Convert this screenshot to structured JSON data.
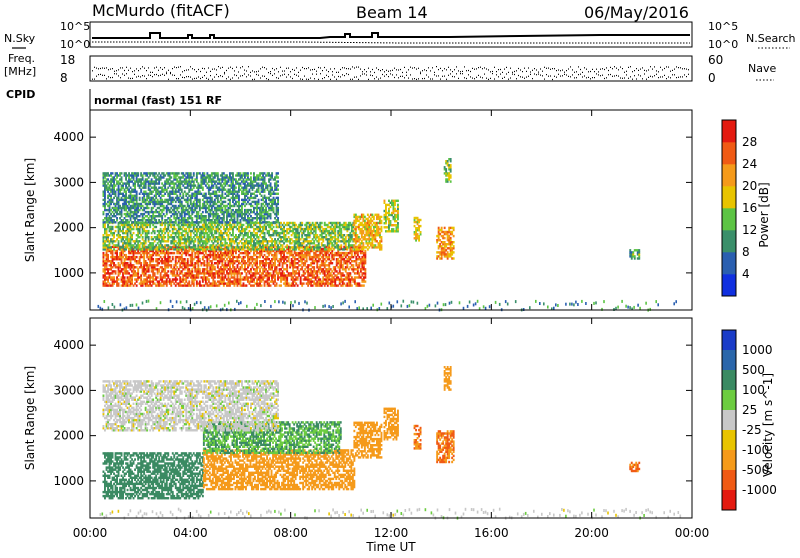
{
  "header": {
    "station": "McMurdo (fitACF)",
    "beam": "Beam 14",
    "date": "06/May/2016"
  },
  "top_panel": {
    "left_label": "N.Sky",
    "right_label": "N.Search",
    "scale_hi": "10^5",
    "scale_lo": "10^0",
    "freq_label_1": "Freq.",
    "freq_label_2": "[MHz]",
    "freq_hi": "18",
    "freq_lo": "8",
    "nave_label": "Nave",
    "nave_hi": "60",
    "nave_lo": "0",
    "cpid_label": "CPID",
    "cpid_value": "normal (fast) 151 RF"
  },
  "chart_data": [
    {
      "type": "heatmap",
      "title": "",
      "xlabel": "Time UT",
      "ylabel": "Slant Range [km]",
      "xlim": [
        0,
        24
      ],
      "ylim": [
        180,
        4600
      ],
      "x_ticks": [
        "00:00",
        "04:00",
        "08:00",
        "12:00",
        "16:00",
        "20:00",
        "00:00"
      ],
      "y_ticks": [
        1000,
        2000,
        3000,
        4000
      ],
      "colorbar": {
        "label": "Power [dB]",
        "ticks": [
          4,
          8,
          12,
          16,
          20,
          24,
          28
        ],
        "range": [
          0,
          32
        ],
        "colors": [
          "#1030e0",
          "#2a5fb0",
          "#3a8f6a",
          "#5cc444",
          "#e8c400",
          "#f59a1a",
          "#f05a14",
          "#e41a10"
        ]
      },
      "regions": [
        {
          "t0": 0.5,
          "t1": 11.0,
          "r0": 700,
          "r1": 1600,
          "value": 26,
          "desc_ref": "main-echo"
        },
        {
          "t0": 0.5,
          "t1": 10.5,
          "r0": 1500,
          "r1": 2100,
          "value": 14
        },
        {
          "t0": 0.5,
          "t1": 7.5,
          "r0": 2100,
          "r1": 3200,
          "value": 10
        },
        {
          "t0": 10.5,
          "t1": 11.6,
          "r0": 1500,
          "r1": 2300,
          "value": 20
        },
        {
          "t0": 11.7,
          "t1": 12.3,
          "r0": 1900,
          "r1": 2600,
          "value": 16
        },
        {
          "t0": 12.9,
          "t1": 13.2,
          "r0": 1700,
          "r1": 2200,
          "value": 18
        },
        {
          "t0": 13.8,
          "t1": 14.5,
          "r0": 1300,
          "r1": 2000,
          "value": 22
        },
        {
          "t0": 14.1,
          "t1": 14.4,
          "r0": 3000,
          "r1": 3500,
          "value": 14
        },
        {
          "t0": 21.5,
          "t1": 21.9,
          "r0": 1300,
          "r1": 1500,
          "value": 12
        }
      ]
    },
    {
      "type": "heatmap",
      "title": "",
      "xlabel": "Time UT",
      "ylabel": "Slant Range [km]",
      "xlim": [
        0,
        24
      ],
      "ylim": [
        180,
        4600
      ],
      "x_ticks": [
        "00:00",
        "04:00",
        "08:00",
        "12:00",
        "16:00",
        "20:00",
        "00:00"
      ],
      "y_ticks": [
        1000,
        2000,
        3000,
        4000
      ],
      "colorbar": {
        "label": "Velocity [m s^-1]",
        "ticks": [
          1000,
          500,
          100,
          25,
          -25,
          -100,
          -500,
          -1000
        ],
        "colors": [
          "#1a3cc8",
          "#2a66aa",
          "#3a8a62",
          "#6ccc40",
          "#c8c8c8",
          "#e8c400",
          "#f59a1a",
          "#f05a14",
          "#e41a10"
        ]
      },
      "regions": [
        {
          "t0": 0.5,
          "t1": 4.5,
          "r0": 600,
          "r1": 1600,
          "value": 300
        },
        {
          "t0": 4.5,
          "t1": 10.5,
          "r0": 800,
          "r1": 1700,
          "value": -300
        },
        {
          "t0": 4.5,
          "t1": 10.0,
          "r0": 1600,
          "r1": 2300,
          "value": 100
        },
        {
          "t0": 0.5,
          "t1": 7.5,
          "r0": 2100,
          "r1": 3200,
          "value": 0
        },
        {
          "t0": 10.5,
          "t1": 11.6,
          "r0": 1500,
          "r1": 2300,
          "value": -300
        },
        {
          "t0": 11.7,
          "t1": 12.3,
          "r0": 1900,
          "r1": 2600,
          "value": -300
        },
        {
          "t0": 12.9,
          "t1": 13.2,
          "r0": 1700,
          "r1": 2200,
          "value": -500
        },
        {
          "t0": 13.8,
          "t1": 14.5,
          "r0": 1400,
          "r1": 2100,
          "value": -500
        },
        {
          "t0": 14.1,
          "t1": 14.4,
          "r0": 3000,
          "r1": 3500,
          "value": -300
        },
        {
          "t0": 21.5,
          "t1": 21.9,
          "r0": 1200,
          "r1": 1400,
          "value": -500
        }
      ]
    }
  ]
}
